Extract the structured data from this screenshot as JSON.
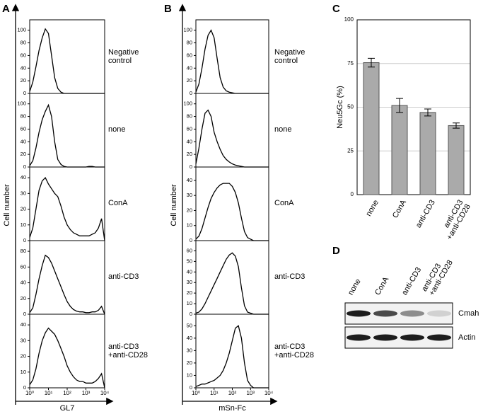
{
  "chart_data": [
    {
      "panel": "A",
      "type": "line",
      "xlabel": "GL7",
      "ylabel": "Cell number",
      "log_x": true,
      "xlim": [
        1,
        10000
      ],
      "xticks": [
        {
          "value": 1,
          "label": "10⁰"
        },
        {
          "value": 10,
          "label": "10¹"
        },
        {
          "value": 100,
          "label": "10²"
        },
        {
          "value": 1000,
          "label": "10³"
        },
        {
          "value": 10000,
          "label": "10⁴"
        }
      ],
      "x": [
        1,
        1.47,
        2.15,
        3.16,
        4.64,
        6.81,
        10,
        14.7,
        21.5,
        31.6,
        46.4,
        68.1,
        100,
        147,
        215,
        316,
        464,
        681,
        1000,
        1468,
        2154,
        3162,
        4642,
        6813,
        10000
      ],
      "color": "#000000",
      "plots": [
        {
          "name": "Negative\ncontrol",
          "ylim": [
            0,
            112
          ],
          "yticks": [
            0,
            20,
            40,
            60,
            80,
            100
          ],
          "values": [
            3,
            18,
            42,
            68,
            88,
            102,
            95,
            60,
            25,
            8,
            2,
            0,
            0,
            0,
            0,
            0,
            0,
            0,
            0,
            0,
            0,
            0,
            0,
            0,
            0
          ]
        },
        {
          "name": "none",
          "ylim": [
            0,
            112
          ],
          "yticks": [
            0,
            20,
            40,
            60,
            80,
            100
          ],
          "values": [
            2,
            10,
            30,
            55,
            75,
            88,
            98,
            80,
            40,
            12,
            4,
            1,
            0,
            0,
            0,
            0,
            0,
            0,
            0,
            1,
            1,
            0,
            0,
            0,
            0
          ]
        },
        {
          "name": "ConA",
          "ylim": [
            0,
            45
          ],
          "yticks": [
            0,
            10,
            20,
            30,
            40
          ],
          "values": [
            2,
            8,
            20,
            32,
            38,
            40,
            36,
            33,
            30,
            28,
            22,
            15,
            10,
            7,
            5,
            4,
            3,
            3,
            3,
            3,
            4,
            5,
            8,
            14,
            0
          ]
        },
        {
          "name": "anti-CD3",
          "ylim": [
            0,
            90
          ],
          "yticks": [
            0,
            20,
            40,
            60,
            80
          ],
          "values": [
            2,
            8,
            25,
            45,
            62,
            75,
            72,
            65,
            55,
            45,
            35,
            25,
            16,
            10,
            6,
            4,
            3,
            3,
            2,
            2,
            3,
            3,
            5,
            10,
            0
          ]
        },
        {
          "name": "anti-CD3\n+anti-CD28",
          "ylim": [
            0,
            45
          ],
          "yticks": [
            0,
            10,
            20,
            30,
            40
          ],
          "values": [
            2,
            5,
            12,
            22,
            30,
            35,
            38,
            36,
            34,
            30,
            25,
            20,
            14,
            10,
            7,
            5,
            4,
            4,
            3,
            3,
            3,
            4,
            6,
            9,
            0
          ]
        }
      ]
    },
    {
      "panel": "B",
      "type": "line",
      "xlabel": "mSn-Fc",
      "ylabel": "Cell number",
      "log_x": true,
      "xlim": [
        1,
        10000
      ],
      "xticks": [
        {
          "value": 1,
          "label": "10⁰"
        },
        {
          "value": 10,
          "label": "10¹"
        },
        {
          "value": 100,
          "label": "10²"
        },
        {
          "value": 1000,
          "label": "10³"
        },
        {
          "value": 10000,
          "label": "10⁴"
        }
      ],
      "x": [
        1,
        1.47,
        2.15,
        3.16,
        4.64,
        6.81,
        10,
        14.7,
        21.5,
        31.6,
        46.4,
        68.1,
        100,
        147,
        215,
        316,
        464,
        681,
        1000,
        1468,
        2154,
        3162,
        4642,
        6813,
        10000
      ],
      "color": "#000000",
      "plots": [
        {
          "name": "Negative\ncontrol",
          "ylim": [
            0,
            112
          ],
          "yticks": [
            0,
            20,
            40,
            60,
            80,
            100
          ],
          "values": [
            2,
            15,
            40,
            70,
            92,
            100,
            88,
            55,
            25,
            10,
            4,
            2,
            1,
            0,
            0,
            0,
            0,
            0,
            0,
            0,
            0,
            0,
            0,
            0,
            0
          ]
        },
        {
          "name": "none",
          "ylim": [
            0,
            112
          ],
          "yticks": [
            0,
            20,
            40,
            60,
            80,
            100
          ],
          "values": [
            5,
            30,
            60,
            85,
            90,
            80,
            55,
            40,
            28,
            18,
            12,
            8,
            5,
            3,
            2,
            1,
            0,
            0,
            0,
            0,
            0,
            0,
            0,
            0,
            0
          ]
        },
        {
          "name": "ConA",
          "ylim": [
            0,
            47
          ],
          "yticks": [
            0,
            10,
            20,
            30,
            40
          ],
          "values": [
            1,
            3,
            8,
            15,
            22,
            28,
            32,
            35,
            37,
            38,
            38,
            38,
            36,
            32,
            25,
            15,
            6,
            2,
            1,
            0,
            0,
            0,
            0,
            0,
            0
          ]
        },
        {
          "name": "anti-CD3",
          "ylim": [
            0,
            67
          ],
          "yticks": [
            0,
            10,
            20,
            30,
            40,
            50,
            60
          ],
          "values": [
            1,
            2,
            5,
            10,
            16,
            22,
            28,
            34,
            40,
            46,
            52,
            56,
            58,
            55,
            45,
            25,
            8,
            2,
            1,
            0,
            0,
            0,
            0,
            0,
            0
          ]
        },
        {
          "name": "anti-CD3\n+anti-CD28",
          "ylim": [
            0,
            57
          ],
          "yticks": [
            0,
            10,
            20,
            30,
            40,
            50
          ],
          "values": [
            1,
            2,
            3,
            3,
            4,
            5,
            6,
            8,
            10,
            14,
            20,
            28,
            38,
            48,
            50,
            40,
            20,
            6,
            2,
            0,
            0,
            0,
            0,
            0,
            0
          ]
        }
      ]
    },
    {
      "panel": "C",
      "type": "bar",
      "ylabel": "Neu5Gc (%)",
      "categories": [
        "none",
        "ConA",
        "anti-CD3",
        "anti-CD3\n+anti-CD28"
      ],
      "values": [
        75.5,
        51,
        47,
        39.5
      ],
      "errors": [
        2.5,
        4,
        2,
        1.5
      ],
      "color": "#aaaaaa",
      "ylim": [
        0,
        100
      ],
      "yticks": [
        0,
        25,
        50,
        75,
        100
      ],
      "grid": true
    }
  ],
  "blot": {
    "panel": "D",
    "lanes": [
      "none",
      "ConA",
      "anti-CD3",
      "anti-CD3\n+anti-CD28"
    ],
    "rows": [
      "Cmah",
      "Actin"
    ]
  }
}
